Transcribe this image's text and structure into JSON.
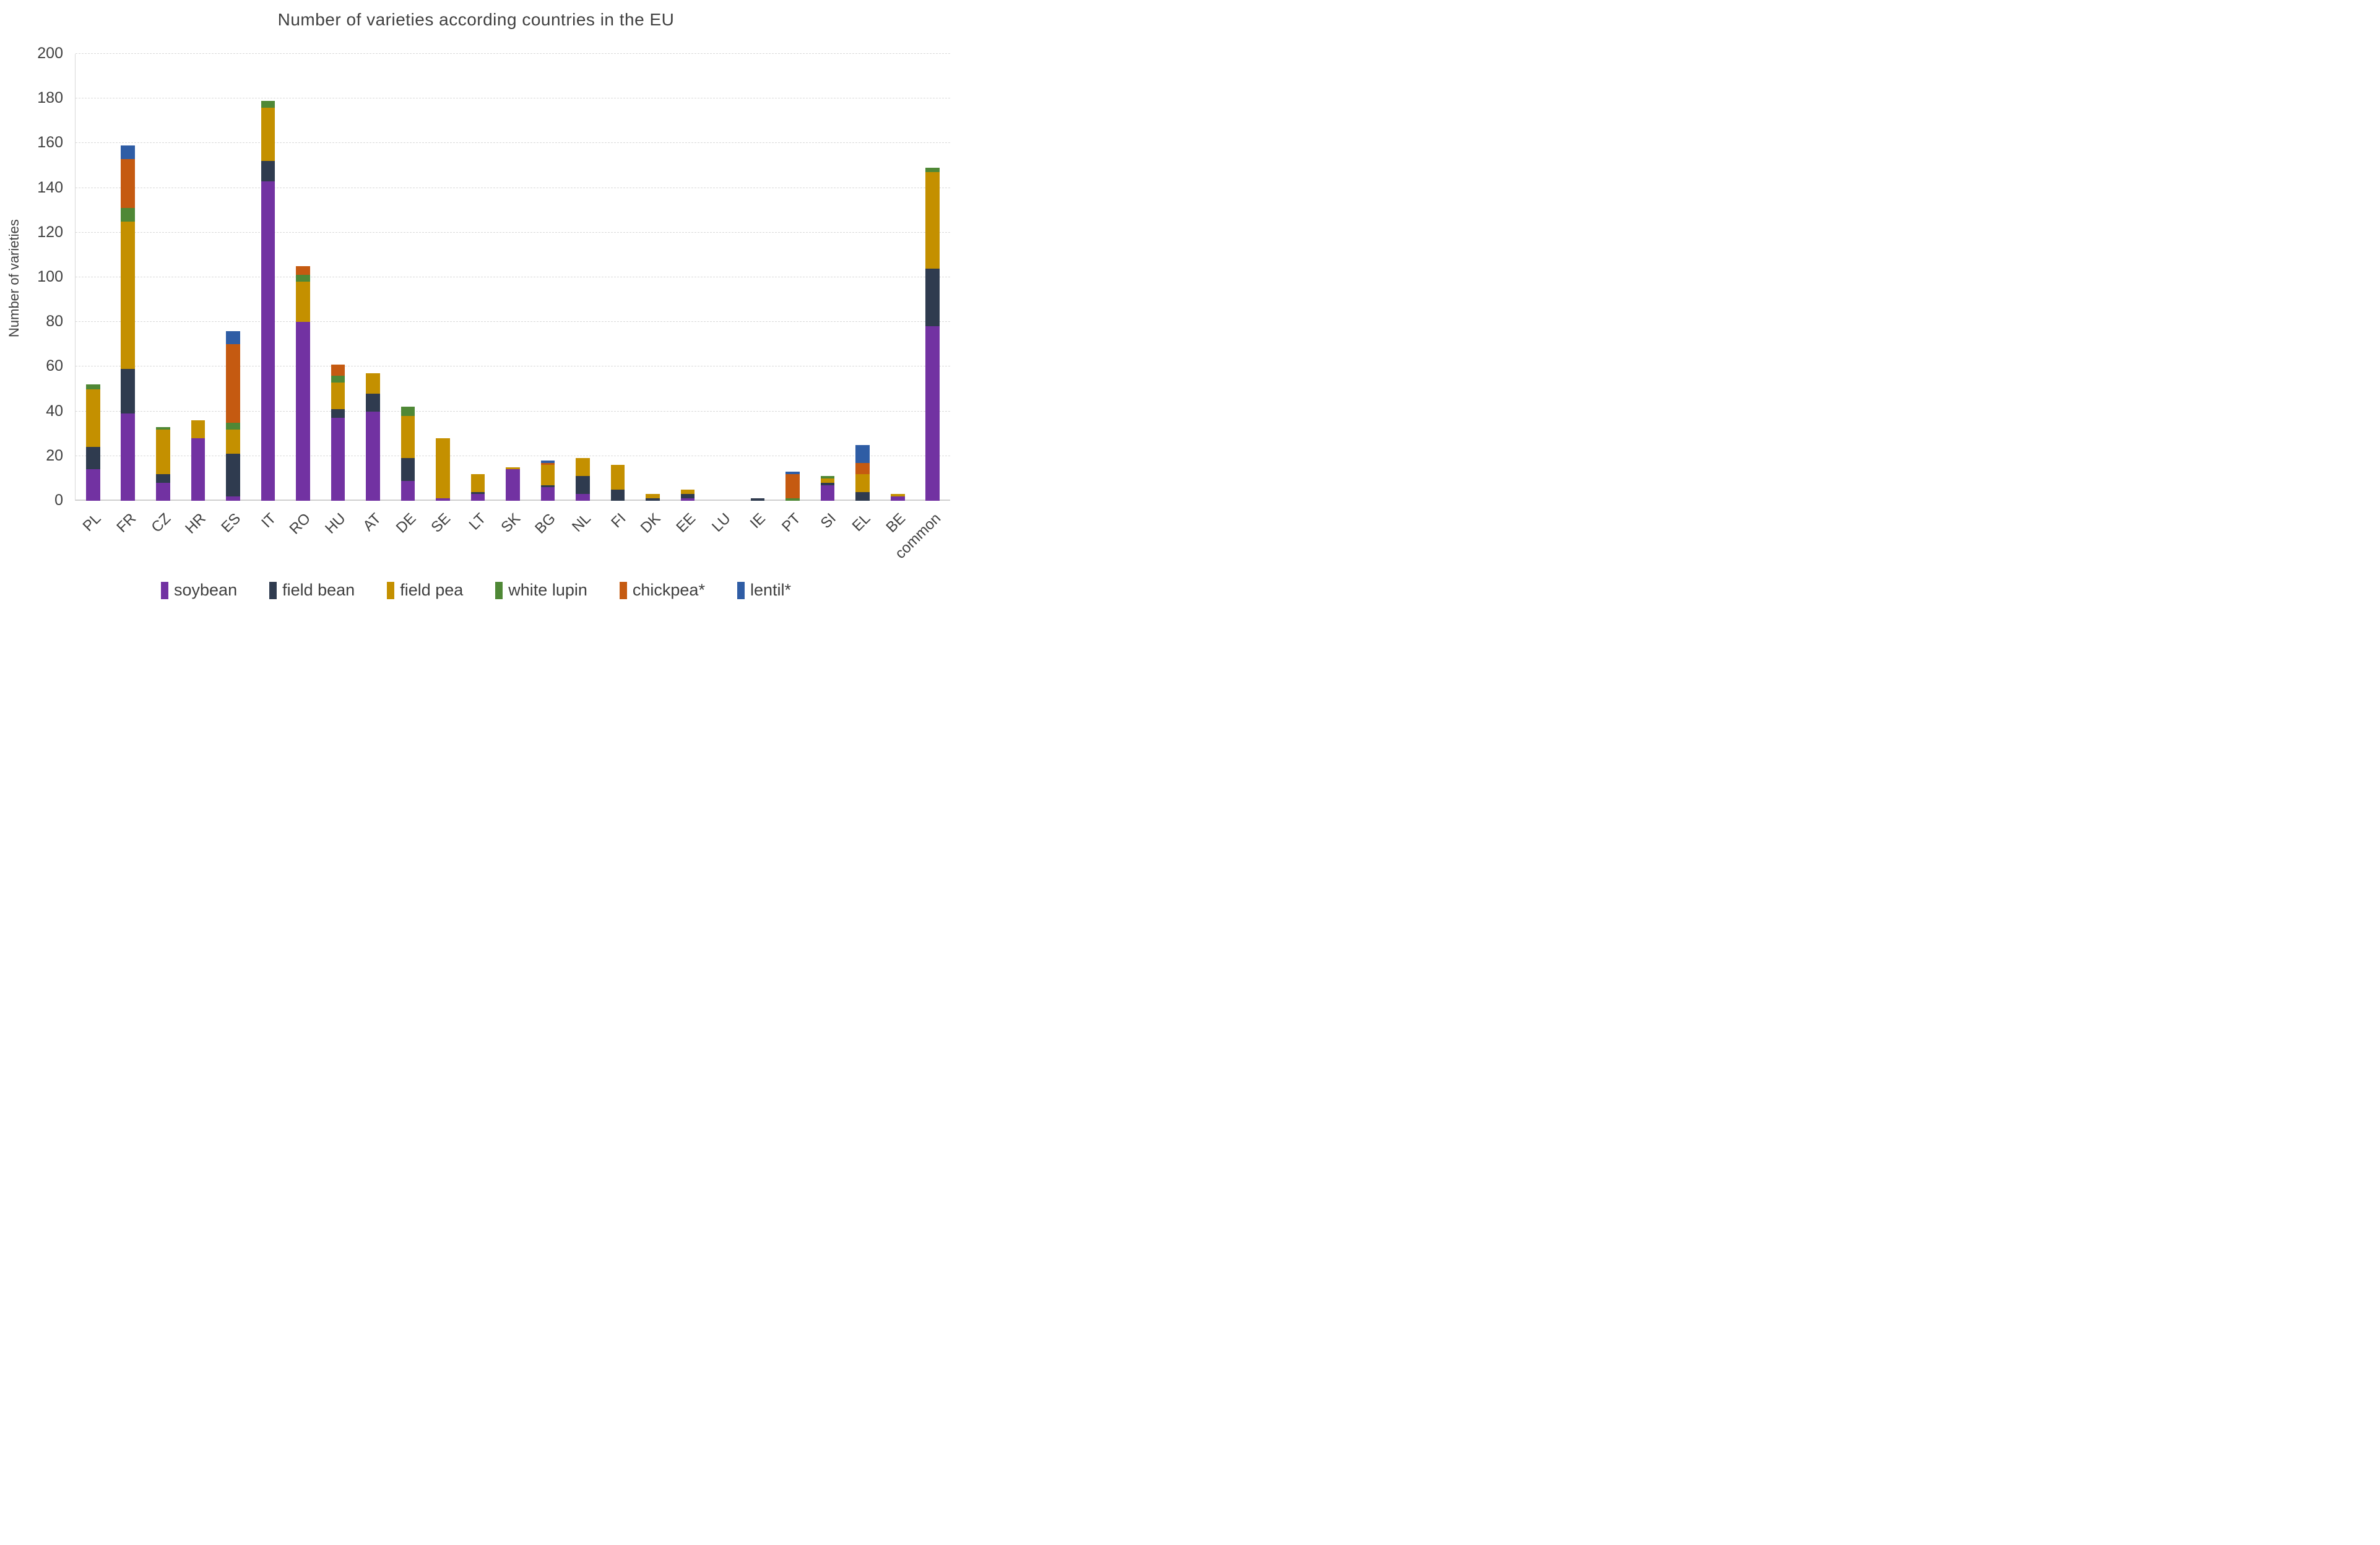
{
  "chart_data": {
    "type": "bar",
    "stacked": true,
    "title": "Number  of varieties according countries in the EU",
    "ylabel": "Number of varieties",
    "xlabel": "",
    "ylim": [
      0,
      200
    ],
    "ytick_step": 20,
    "yticks": [
      0,
      20,
      40,
      60,
      80,
      100,
      120,
      140,
      160,
      180,
      200
    ],
    "grid": true,
    "gridline_color": "#d9d9d9",
    "text_color": "#404040",
    "legend_position": "bottom",
    "categories": [
      "PL",
      "FR",
      "CZ",
      "HR",
      "ES",
      "IT",
      "RO",
      "HU",
      "AT",
      "DE",
      "SE",
      "LT",
      "SK",
      "BG",
      "NL",
      "FI",
      "DK",
      "EE",
      "LU",
      "IE",
      "PT",
      "SI",
      "EL",
      "BE",
      "common"
    ],
    "series": [
      {
        "name": "soybean",
        "color": "#7232A2",
        "values": [
          14,
          39,
          8,
          28,
          2,
          143,
          80,
          37,
          40,
          9,
          1,
          3,
          14,
          6,
          3,
          0,
          0,
          1,
          0,
          0,
          0,
          7,
          0,
          2,
          78
        ]
      },
      {
        "name": "field bean",
        "color": "#2F3B4F",
        "values": [
          10,
          20,
          4,
          0,
          19,
          9,
          0,
          4,
          8,
          10,
          0,
          1,
          0,
          1,
          8,
          5,
          1,
          2,
          0,
          1,
          0,
          1,
          4,
          0,
          26
        ]
      },
      {
        "name": "field pea",
        "color": "#C49000",
        "values": [
          26,
          66,
          20,
          8,
          11,
          24,
          18,
          12,
          9,
          19,
          27,
          8,
          1,
          9,
          8,
          11,
          2,
          2,
          0,
          0,
          0,
          2,
          8,
          1,
          43
        ]
      },
      {
        "name": "white lupin",
        "color": "#4F8836",
        "values": [
          2,
          6,
          1,
          0,
          3,
          3,
          3,
          3,
          0,
          4,
          0,
          0,
          0,
          0,
          0,
          0,
          0,
          0,
          0,
          0,
          1,
          1,
          0,
          0,
          2
        ]
      },
      {
        "name": "chickpea*",
        "color": "#C55A11",
        "values": [
          0,
          22,
          0,
          0,
          35,
          0,
          4,
          5,
          0,
          0,
          0,
          0,
          0,
          1,
          0,
          0,
          0,
          0,
          0,
          0,
          11,
          0,
          5,
          0,
          0
        ]
      },
      {
        "name": "lentil*",
        "color": "#2F5DA5",
        "values": [
          0,
          6,
          0,
          0,
          6,
          0,
          0,
          0,
          0,
          0,
          0,
          0,
          0,
          1,
          0,
          0,
          0,
          0,
          0,
          0,
          1,
          0,
          8,
          0,
          0
        ]
      }
    ]
  }
}
